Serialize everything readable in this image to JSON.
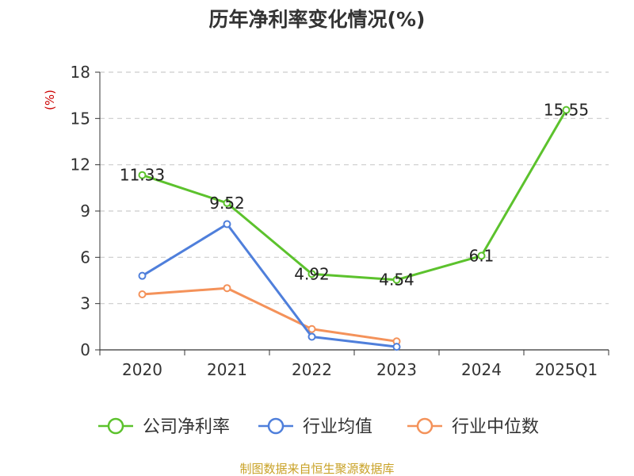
{
  "chart_data": {
    "type": "line",
    "title": "历年净利率变化情况(%)",
    "ylabel": "(%)",
    "xlabel": "",
    "categories": [
      "2020",
      "2021",
      "2022",
      "2023",
      "2024",
      "2025Q1"
    ],
    "ylim": [
      0,
      18
    ],
    "yticks": [
      0,
      3,
      6,
      9,
      12,
      15,
      18
    ],
    "grid": true,
    "legend_position": "bottom",
    "series": [
      {
        "name": "公司净利率",
        "color": "#5cc22d",
        "values": [
          11.33,
          9.52,
          4.92,
          4.54,
          6.1,
          15.55
        ],
        "labels": [
          "11.33",
          "9.52",
          "4.92",
          "4.54",
          "6.1",
          "15.55"
        ]
      },
      {
        "name": "行业均值",
        "color": "#4f7fdb",
        "values": [
          4.8,
          8.15,
          0.85,
          0.2,
          null,
          null
        ]
      },
      {
        "name": "行业中位数",
        "color": "#f4925a",
        "values": [
          3.6,
          4.0,
          1.35,
          0.55,
          null,
          null
        ]
      }
    ]
  },
  "source_note": "制图数据来自恒生聚源数据库"
}
